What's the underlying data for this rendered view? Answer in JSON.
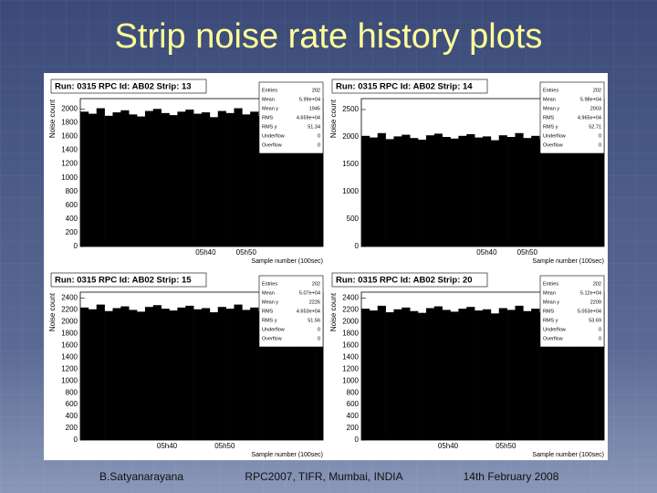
{
  "slide": {
    "title": "Strip noise rate history plots",
    "footer": [
      "B.Satyanarayana",
      "RPC2007, TIFR, Mumbai, INDIA",
      "14th February 2008"
    ]
  },
  "chart_data": [
    {
      "type": "histogram",
      "title": "Run: 0315  RPC Id: AB02  Strip: 13",
      "ylabel": "Noise count",
      "xlabel": "Sample number (100sec)",
      "bins": [
        309,
        311,
        313,
        315,
        317,
        319,
        321,
        323,
        325,
        327,
        329,
        331,
        333,
        335,
        337,
        339,
        341,
        343,
        345,
        347,
        349,
        351,
        353,
        355,
        357,
        359,
        361,
        363,
        365,
        367,
        369
      ],
      "values": [
        1960,
        1930,
        2010,
        1900,
        1950,
        1980,
        1920,
        1890,
        1970,
        2000,
        1940,
        1910,
        1960,
        1990,
        1930,
        1950,
        1880,
        1970,
        1940,
        2010,
        1920,
        1960,
        1900,
        1980,
        1950,
        1930,
        1990,
        1940,
        1910,
        1960
      ],
      "color": "#000000",
      "xlim": [
        309,
        369
      ],
      "xticks": [
        {
          "value": 340,
          "label": "05h40"
        },
        {
          "value": 350,
          "label": "05h50"
        }
      ],
      "ylim": [
        0,
        2150
      ],
      "yticks": [
        0,
        200,
        400,
        600,
        800,
        1000,
        1200,
        1400,
        1600,
        1800,
        2000
      ],
      "stats": [
        {
          "label": "Entries",
          "value": "202"
        },
        {
          "label": "Mean",
          "value": "5.99e+04"
        },
        {
          "label": "Mean y",
          "value": "1945"
        },
        {
          "label": "RMS",
          "value": "4.659e+04"
        },
        {
          "label": "RMS y",
          "value": "51.34"
        },
        {
          "label": "Underflow",
          "value": "0"
        },
        {
          "label": "Overflow",
          "value": "0"
        }
      ]
    },
    {
      "type": "histogram",
      "title": "Run: 0315  RPC Id: AB02  Strip: 14",
      "ylabel": "Noise count",
      "xlabel": "Sample number (100sec)",
      "bins": [
        309,
        311,
        313,
        315,
        317,
        319,
        321,
        323,
        325,
        327,
        329,
        331,
        333,
        335,
        337,
        339,
        341,
        343,
        345,
        347,
        349,
        351,
        353,
        355,
        357,
        359,
        361,
        363,
        365,
        367,
        369
      ],
      "values": [
        2020,
        1990,
        2070,
        1960,
        2010,
        2040,
        1980,
        1950,
        2030,
        2060,
        2000,
        1970,
        2020,
        2050,
        1990,
        2010,
        1940,
        2030,
        2000,
        2070,
        1980,
        2020,
        1960,
        2040,
        2010,
        1990,
        2050,
        2000,
        1970,
        2020
      ],
      "color": "#000000",
      "xlim": [
        309,
        369
      ],
      "xticks": [
        {
          "value": 340,
          "label": "05h40"
        },
        {
          "value": 350,
          "label": "05h50"
        }
      ],
      "ylim": [
        0,
        2700
      ],
      "yticks": [
        0,
        500,
        1000,
        1500,
        2000,
        2500
      ],
      "stats": [
        {
          "label": "Entries",
          "value": "202"
        },
        {
          "label": "Mean",
          "value": "5.98e+04"
        },
        {
          "label": "Mean y",
          "value": "2003"
        },
        {
          "label": "RMS",
          "value": "4.965e+04"
        },
        {
          "label": "RMS y",
          "value": "52.71"
        },
        {
          "label": "Underflow",
          "value": "0"
        },
        {
          "label": "Overflow",
          "value": "0"
        }
      ]
    },
    {
      "type": "histogram",
      "title": "Run: 0315  RPC Id: AB02  Strip: 15",
      "ylabel": "Noise count",
      "xlabel": "Sample number (100sec)",
      "bins": [
        325,
        326.4,
        327.8,
        329.2,
        330.6,
        332,
        333.4,
        334.8,
        336.2,
        337.6,
        339,
        340.4,
        341.8,
        343.2,
        344.6,
        346,
        347.4,
        348.8,
        350.2,
        351.6,
        353,
        354.4,
        355.8,
        357.2,
        358.6,
        360,
        361.4,
        362.8,
        364.2,
        365.6,
        367
      ],
      "values": [
        2240,
        2210,
        2290,
        2180,
        2230,
        2260,
        2200,
        2170,
        2250,
        2280,
        2220,
        2190,
        2240,
        2270,
        2210,
        2230,
        2160,
        2250,
        2220,
        2290,
        2200,
        2240,
        2180,
        2260,
        2230,
        2210,
        2270,
        2220,
        2190,
        2240
      ],
      "color": "#000000",
      "xlim": [
        325,
        367
      ],
      "xticks": [
        {
          "value": 340,
          "label": "05h40"
        },
        {
          "value": 350,
          "label": "05h50"
        }
      ],
      "ylim": [
        0,
        2500
      ],
      "yticks": [
        0,
        200,
        400,
        600,
        800,
        1000,
        1200,
        1400,
        1600,
        1800,
        2000,
        2200,
        2400
      ],
      "stats": [
        {
          "label": "Entries",
          "value": "202"
        },
        {
          "label": "Mean",
          "value": "5.07e+04"
        },
        {
          "label": "Mean y",
          "value": "2226"
        },
        {
          "label": "RMS",
          "value": "4.653e+04"
        },
        {
          "label": "RMS y",
          "value": "51.56"
        },
        {
          "label": "Underflow",
          "value": "0"
        },
        {
          "label": "Overflow",
          "value": "0"
        }
      ]
    },
    {
      "type": "histogram",
      "title": "Run: 0315  RPC Id: AB02  Strip: 20",
      "ylabel": "Noise count",
      "xlabel": "Sample number (100sec)",
      "bins": [
        325,
        326.4,
        327.8,
        329.2,
        330.6,
        332,
        333.4,
        334.8,
        336.2,
        337.6,
        339,
        340.4,
        341.8,
        343.2,
        344.6,
        346,
        347.4,
        348.8,
        350.2,
        351.6,
        353,
        354.4,
        355.8,
        357.2,
        358.6,
        360,
        361.4,
        362.8,
        364.2,
        365.6,
        367
      ],
      "values": [
        2220,
        2190,
        2270,
        2160,
        2210,
        2240,
        2180,
        2150,
        2230,
        2260,
        2200,
        2170,
        2220,
        2250,
        2190,
        2210,
        2140,
        2230,
        2200,
        2270,
        2180,
        2220,
        2160,
        2240,
        2210,
        2190,
        2250,
        2200,
        2170,
        2220
      ],
      "color": "#000000",
      "xlim": [
        325,
        367
      ],
      "xticks": [
        {
          "value": 340,
          "label": "05h40"
        },
        {
          "value": 350,
          "label": "05h50"
        }
      ],
      "ylim": [
        0,
        2500
      ],
      "yticks": [
        0,
        200,
        400,
        600,
        800,
        1000,
        1200,
        1400,
        1600,
        1800,
        2000,
        2200,
        2400
      ],
      "stats": [
        {
          "label": "Entries",
          "value": "202"
        },
        {
          "label": "Mean",
          "value": "5.12e+04"
        },
        {
          "label": "Mean y",
          "value": "2209"
        },
        {
          "label": "RMS",
          "value": "5.053e+04"
        },
        {
          "label": "RMS y",
          "value": "53.69"
        },
        {
          "label": "Underflow",
          "value": "0"
        },
        {
          "label": "Overflow",
          "value": "0"
        }
      ]
    }
  ]
}
